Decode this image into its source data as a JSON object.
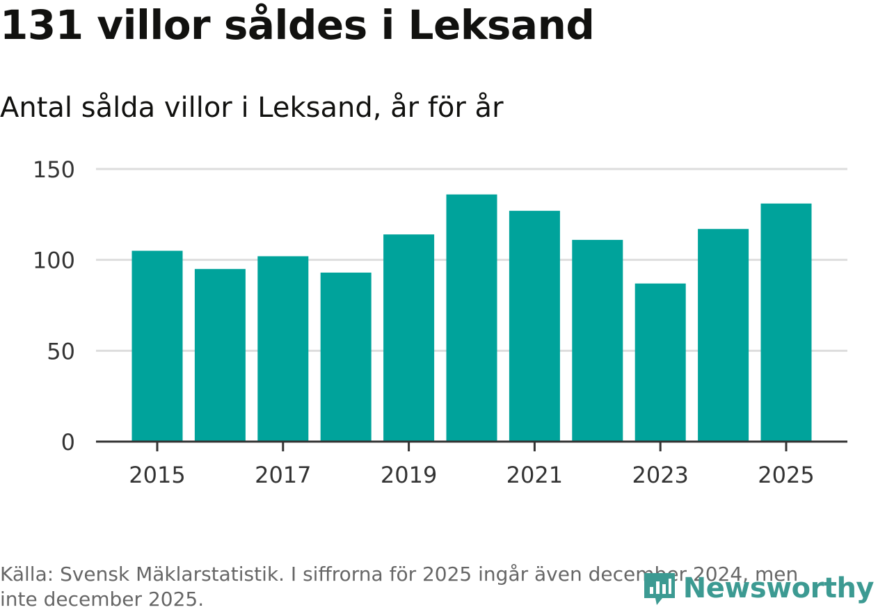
{
  "header": {
    "title": "131 villor såldes i Leksand",
    "subtitle": "Antal sålda villor i Leksand, år för år"
  },
  "chart_data": {
    "type": "bar",
    "title": "131 villor såldes i Leksand",
    "subtitle": "Antal sålda villor i Leksand, år för år",
    "categories": [
      "2015",
      "2016",
      "2017",
      "2018",
      "2019",
      "2020",
      "2021",
      "2022",
      "2023",
      "2024",
      "2025"
    ],
    "values": [
      105,
      95,
      102,
      93,
      114,
      136,
      127,
      111,
      87,
      117,
      131
    ],
    "x_tick_labels": [
      "2015",
      "2017",
      "2019",
      "2021",
      "2023",
      "2025"
    ],
    "y_ticks": [
      0,
      50,
      100,
      150
    ],
    "ylim": [
      0,
      150
    ],
    "xlabel": "",
    "ylabel": "",
    "grid": true,
    "bar_color": "#00a39b"
  },
  "footer": {
    "source": "Källa: Svensk Mäklarstatistik. I siffrorna för 2025 ingår även december 2024, men inte december 2025."
  },
  "brand": {
    "name": "Newsworthy",
    "icon": "newsworthy-logo-icon",
    "color": "#3c9a92"
  }
}
